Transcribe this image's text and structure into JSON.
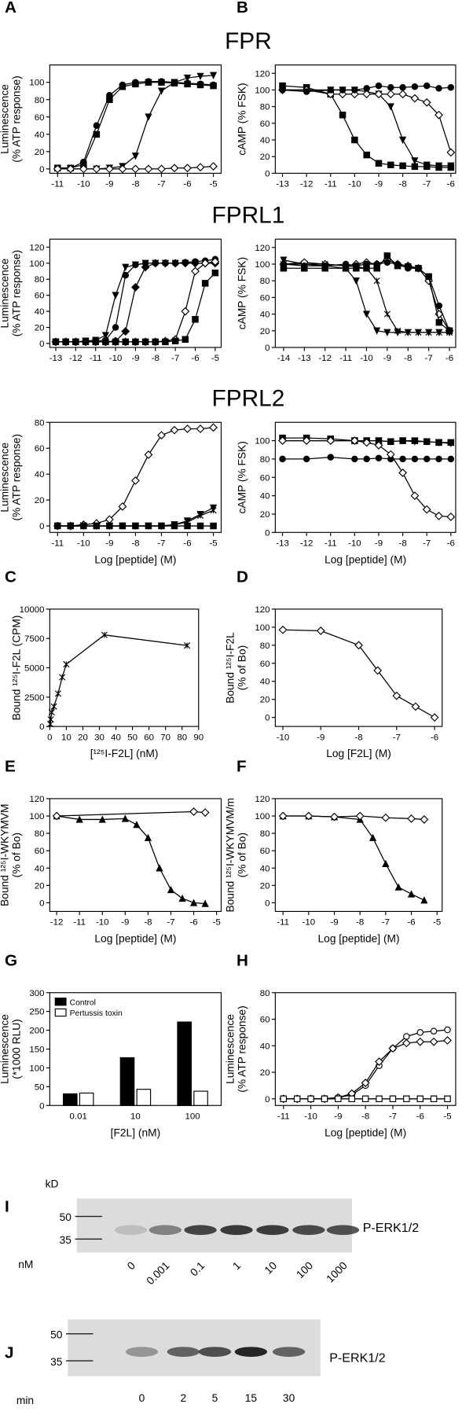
{
  "chart_data": [
    {
      "type": "line",
      "panel": "A",
      "title": "FPR",
      "ylabel": [
        "Luminescence",
        "(% ATP response)"
      ],
      "xlim": [
        -11.3,
        -4.7
      ],
      "xticks": [
        -11,
        -10,
        -9,
        -8,
        -7,
        -6,
        -5
      ],
      "ylim": [
        -5,
        120
      ],
      "yticks": [
        0,
        20,
        40,
        60,
        80,
        100
      ],
      "x": [
        -11,
        -10.5,
        -10,
        -9.5,
        -9,
        -8.5,
        -8,
        -7.5,
        -7,
        -6.5,
        -6,
        -5.5,
        -5
      ],
      "series": [
        {
          "marker": "square",
          "filled": true,
          "values": [
            1,
            1,
            5,
            40,
            80,
            95,
            98,
            100,
            100,
            99,
            98,
            97,
            96
          ]
        },
        {
          "marker": "circle",
          "filled": true,
          "values": [
            1,
            1,
            8,
            50,
            85,
            97,
            100,
            101,
            101,
            100,
            99,
            98,
            97
          ]
        },
        {
          "marker": "triangle",
          "filled": true,
          "values": [
            0,
            0,
            0,
            0,
            1,
            3,
            15,
            60,
            90,
            100,
            105,
            107,
            108
          ]
        },
        {
          "marker": "diamond",
          "filled": false,
          "values": [
            0,
            0,
            0,
            0,
            0,
            0,
            0,
            0,
            0,
            1,
            1,
            2,
            3
          ]
        }
      ]
    },
    {
      "type": "line",
      "panel": "B",
      "ylabel": [
        "cAMP (% FSK)"
      ],
      "xlim": [
        -13.3,
        -5.8
      ],
      "xticks": [
        -13,
        -12,
        -11,
        -10,
        -9,
        -8,
        -7,
        -6
      ],
      "ylim": [
        0,
        130
      ],
      "yticks": [
        0,
        20,
        40,
        60,
        80,
        100,
        120
      ],
      "x": [
        -13,
        -12,
        -11,
        -10.5,
        -10,
        -9.5,
        -9,
        -8.5,
        -8,
        -7.5,
        -7,
        -6.5,
        -6
      ],
      "series": [
        {
          "marker": "square",
          "filled": true,
          "values": [
            105,
            103,
            95,
            70,
            40,
            22,
            12,
            10,
            9,
            8,
            8,
            7,
            7
          ]
        },
        {
          "marker": "triangle",
          "filled": true,
          "values": [
            100,
            100,
            100,
            100,
            100,
            98,
            95,
            80,
            40,
            15,
            10,
            9,
            9
          ]
        },
        {
          "marker": "diamond",
          "filled": false,
          "values": [
            100,
            100,
            95,
            95,
            95,
            95,
            95,
            95,
            95,
            90,
            85,
            70,
            25
          ]
        },
        {
          "marker": "circle",
          "filled": true,
          "values": [
            100,
            98,
            100,
            100,
            100,
            102,
            105,
            103,
            103,
            104,
            105,
            102,
            103
          ]
        }
      ]
    },
    {
      "type": "line",
      "title": "FPRL1",
      "ylabel": [
        "Luminescence",
        "(% ATP response)"
      ],
      "xlim": [
        -13.3,
        -4.7
      ],
      "xticks": [
        -13,
        -12,
        -11,
        -10,
        -9,
        -8,
        -7,
        -6,
        -5
      ],
      "ylim": [
        -5,
        130
      ],
      "yticks": [
        0,
        20,
        40,
        60,
        80,
        100,
        120
      ],
      "x": [
        -13,
        -12.5,
        -12,
        -11.5,
        -11,
        -10.5,
        -10,
        -9.5,
        -9,
        -8.5,
        -8,
        -7.5,
        -7,
        -6.5,
        -6,
        -5.5,
        -5
      ],
      "series": [
        {
          "marker": "triangle",
          "filled": true,
          "values": [
            2,
            2,
            2,
            3,
            4,
            10,
            60,
            95,
            98,
            100,
            100,
            100,
            100,
            100,
            100,
            100,
            100
          ]
        },
        {
          "marker": "circle",
          "filled": true,
          "values": [
            2,
            2,
            2,
            2,
            3,
            4,
            20,
            85,
            98,
            100,
            100,
            100,
            100,
            101,
            102,
            103,
            105
          ]
        },
        {
          "marker": "diamond",
          "filled": true,
          "values": [
            2,
            2,
            2,
            2,
            2,
            2,
            3,
            15,
            70,
            95,
            100,
            100,
            100,
            100,
            100,
            100,
            100
          ]
        },
        {
          "marker": "diamond",
          "filled": false,
          "values": [
            2,
            2,
            2,
            2,
            2,
            2,
            2,
            2,
            2,
            2,
            2,
            3,
            5,
            40,
            90,
            100,
            102
          ]
        },
        {
          "marker": "square",
          "filled": true,
          "values": [
            2,
            2,
            2,
            2,
            2,
            2,
            2,
            2,
            2,
            2,
            2,
            2,
            3,
            5,
            30,
            75,
            88
          ]
        }
      ]
    },
    {
      "type": "line",
      "ylabel": [
        "cAMP (% FSK)"
      ],
      "xlim": [
        -14.4,
        -5.7
      ],
      "xticks": [
        -14,
        -13,
        -12,
        -11,
        -10,
        -9,
        -8,
        -7,
        -6
      ],
      "ylim": [
        0,
        130
      ],
      "yticks": [
        0,
        20,
        40,
        60,
        80,
        100,
        120
      ],
      "x": [
        -14,
        -13,
        -12,
        -11,
        -10.5,
        -10,
        -9.5,
        -9,
        -8.5,
        -8,
        -7.5,
        -7,
        -6.5,
        -6
      ],
      "series": [
        {
          "marker": "triangle",
          "filled": true,
          "values": [
            105,
            100,
            98,
            95,
            80,
            40,
            20,
            18,
            18,
            18,
            18,
            18,
            18,
            18
          ]
        },
        {
          "marker": "star",
          "filled": true,
          "values": [
            100,
            100,
            100,
            98,
            97,
            95,
            80,
            40,
            20,
            18,
            18,
            18,
            18,
            18
          ]
        },
        {
          "marker": "diamond",
          "filled": false,
          "values": [
            100,
            102,
            100,
            98,
            100,
            102,
            100,
            105,
            100,
            98,
            95,
            80,
            40,
            20
          ]
        },
        {
          "marker": "square",
          "filled": true,
          "values": [
            95,
            95,
            95,
            95,
            95,
            95,
            95,
            110,
            98,
            97,
            95,
            85,
            30,
            20
          ]
        },
        {
          "marker": "circle",
          "filled": true,
          "values": [
            100,
            98,
            98,
            100,
            98,
            100,
            100,
            102,
            100,
            95,
            95,
            85,
            50,
            20
          ]
        }
      ]
    },
    {
      "type": "line",
      "title": "FPRL2",
      "ylabel": [
        "Luminescence",
        "(% ATP response)"
      ],
      "xlabel": "Log [peptide] (M)",
      "xlim": [
        -11.3,
        -4.7
      ],
      "xticks": [
        -11,
        -10,
        -9,
        -8,
        -7,
        -6,
        -5
      ],
      "ylim": [
        -5,
        80
      ],
      "yticks": [
        0,
        20,
        40,
        60,
        80
      ],
      "x": [
        -11,
        -10.5,
        -10,
        -9.5,
        -9,
        -8.5,
        -8,
        -7.5,
        -7,
        -6.5,
        -6,
        -5.5,
        -5
      ],
      "series": [
        {
          "marker": "diamond",
          "filled": false,
          "values": [
            0,
            0,
            1,
            2,
            5,
            15,
            35,
            55,
            70,
            74,
            75,
            75,
            76
          ]
        },
        {
          "marker": "triangle",
          "filled": true,
          "values": [
            0,
            0,
            0,
            0,
            0,
            0,
            0,
            0,
            0,
            1,
            4,
            9,
            14
          ]
        },
        {
          "marker": "star",
          "filled": true,
          "values": [
            0,
            0,
            0,
            0,
            0,
            0,
            0,
            0,
            0,
            1,
            3,
            8,
            12
          ]
        },
        {
          "marker": "square",
          "filled": true,
          "values": [
            0,
            0,
            0,
            0,
            0,
            0,
            0,
            0,
            0,
            0,
            0,
            0,
            0
          ]
        }
      ]
    },
    {
      "type": "line",
      "ylabel": [
        "cAMP (% FSK)"
      ],
      "xlabel": "Log [peptide] (M)",
      "xlim": [
        -13.3,
        -5.8
      ],
      "xticks": [
        -13,
        -12,
        -11,
        -10,
        -9,
        -8,
        -7,
        -6
      ],
      "ylim": [
        0,
        120
      ],
      "yticks": [
        0,
        20,
        40,
        60,
        80,
        100
      ],
      "x": [
        -13,
        -12,
        -11,
        -10,
        -9.5,
        -9,
        -8.5,
        -8,
        -7.5,
        -7,
        -6.5,
        -6
      ],
      "series": [
        {
          "marker": "square",
          "filled": true,
          "values": [
            103,
            103,
            102,
            100,
            100,
            100,
            99,
            100,
            100,
            99,
            98,
            98
          ]
        },
        {
          "marker": "triangle",
          "filled": true,
          "values": [
            100,
            100,
            100,
            100,
            100,
            100,
            99,
            100,
            99,
            99,
            98,
            97
          ]
        },
        {
          "marker": "circle",
          "filled": true,
          "values": [
            80,
            80,
            82,
            80,
            80,
            81,
            80,
            80,
            80,
            80,
            80,
            80
          ]
        },
        {
          "marker": "diamond",
          "filled": false,
          "values": [
            100,
            100,
            100,
            100,
            98,
            95,
            85,
            65,
            40,
            25,
            18,
            17
          ]
        }
      ]
    },
    {
      "type": "line",
      "panel": "C",
      "ylabel": [
        "Bound ¹²⁵I-F2L (CPM)"
      ],
      "xlabel": "[¹²⁵I-F2L] (nM)",
      "xlim": [
        0,
        90
      ],
      "xticks": [
        0,
        10,
        20,
        30,
        40,
        50,
        60,
        70,
        80,
        90
      ],
      "ylim": [
        0,
        10000
      ],
      "yticks": [
        0,
        2500,
        5000,
        7500,
        10000
      ],
      "x": [
        0.3,
        0.6,
        1.2,
        2.5,
        5,
        7.5,
        10,
        33,
        83
      ],
      "series": [
        {
          "marker": "star",
          "filled": true,
          "values": [
            200,
            600,
            1200,
            1700,
            2800,
            4200,
            5300,
            7800,
            6900
          ]
        }
      ]
    },
    {
      "type": "line",
      "panel": "D",
      "ylabel": [
        "Bound ¹²⁵I-F2L",
        "(% of Bo)"
      ],
      "xlabel": "Log [F2L] (M)",
      "xlim": [
        -10.2,
        -5.8
      ],
      "xticks": [
        -10,
        -9,
        -8,
        -7,
        -6
      ],
      "ylim": [
        -10,
        120
      ],
      "yticks": [
        0,
        20,
        40,
        60,
        80,
        100,
        120
      ],
      "x": [
        -10,
        -9,
        -8,
        -7.5,
        -7,
        -6.5,
        -6
      ],
      "series": [
        {
          "marker": "diamond",
          "filled": false,
          "values": [
            97,
            96,
            80,
            52,
            24,
            12,
            0
          ]
        }
      ]
    },
    {
      "type": "line",
      "panel": "E",
      "ylabel": [
        "Bound ¹²⁵I-WKYMVM",
        "(% of Bo)"
      ],
      "xlabel": "Log [peptide] (M)",
      "xlim": [
        -12.3,
        -4.8
      ],
      "xticks": [
        -12,
        -11,
        -10,
        -9,
        -8,
        -7,
        -6,
        -5
      ],
      "ylim": [
        -10,
        120
      ],
      "yticks": [
        0,
        20,
        40,
        60,
        80,
        100,
        120
      ],
      "series": [
        {
          "marker": "triangle-up",
          "filled": true,
          "x": [
            -12,
            -11,
            -10,
            -9,
            -8.5,
            -8,
            -7.5,
            -7,
            -6.5,
            -6,
            -5.5
          ],
          "values": [
            100,
            96,
            96,
            97,
            90,
            75,
            40,
            15,
            5,
            0,
            -1
          ]
        },
        {
          "marker": "diamond",
          "filled": false,
          "x": [
            -12,
            -6,
            -5.5
          ],
          "values": [
            100,
            105,
            104
          ]
        }
      ]
    },
    {
      "type": "line",
      "panel": "F",
      "ylabel": [
        "Bound ¹²⁵I-WKYMVM/m",
        "(% of Bo)"
      ],
      "xlabel": "Log [peptide] (M)",
      "xlim": [
        -11.3,
        -4.8
      ],
      "xticks": [
        -11,
        -10,
        -9,
        -8,
        -7,
        -6,
        -5
      ],
      "ylim": [
        -10,
        120
      ],
      "yticks": [
        0,
        20,
        40,
        60,
        80,
        100,
        120
      ],
      "series": [
        {
          "marker": "triangle-up",
          "filled": true,
          "x": [
            -11,
            -10,
            -9,
            -8,
            -7.5,
            -7,
            -6.5,
            -6,
            -5.5
          ],
          "values": [
            100,
            100,
            99,
            96,
            75,
            45,
            18,
            10,
            3
          ]
        },
        {
          "marker": "diamond",
          "filled": false,
          "x": [
            -11,
            -10,
            -9,
            -8,
            -7,
            -6,
            -5.5
          ],
          "values": [
            100,
            100,
            99,
            100,
            98,
            97,
            96
          ]
        }
      ]
    },
    {
      "type": "bar",
      "panel": "G",
      "ylabel": [
        "Luminescence",
        "(*1000 RLU)"
      ],
      "xlabel": "[F2L] (nM)",
      "categories": [
        "0.01",
        "10",
        "100"
      ],
      "ylim": [
        0,
        300
      ],
      "yticks": [
        0,
        50,
        100,
        150,
        200,
        250,
        300
      ],
      "series": [
        {
          "name": "Control",
          "color": "#000000",
          "values": [
            31,
            127,
            222
          ]
        },
        {
          "name": "Pertussis toxin",
          "color": "#ffffff",
          "values": [
            33,
            43,
            38
          ]
        }
      ]
    },
    {
      "type": "line",
      "panel": "H",
      "ylabel": [
        "Luminescence",
        "(% ATP response)"
      ],
      "xlabel": "Log [peptide] (M)",
      "xlim": [
        -11.3,
        -4.7
      ],
      "xticks": [
        -11,
        -10,
        -9,
        -8,
        -7,
        -6,
        -5
      ],
      "ylim": [
        -5,
        80
      ],
      "yticks": [
        0,
        20,
        40,
        60,
        80
      ],
      "x": [
        -11,
        -10.5,
        -10,
        -9.5,
        -9,
        -8.5,
        -8,
        -7.5,
        -7,
        -6.5,
        -6,
        -5.5,
        -5
      ],
      "series": [
        {
          "marker": "circle",
          "filled": false,
          "values": [
            0,
            0,
            0,
            0,
            1,
            3,
            10,
            25,
            38,
            47,
            50,
            51,
            52
          ]
        },
        {
          "marker": "diamond",
          "filled": false,
          "values": [
            0,
            0,
            0,
            0,
            1,
            4,
            12,
            28,
            38,
            42,
            43,
            43,
            44
          ]
        },
        {
          "marker": "square",
          "filled": false,
          "values": [
            0,
            0,
            0,
            0,
            0,
            0,
            0,
            0,
            0,
            0,
            0,
            0,
            0
          ]
        }
      ]
    }
  ],
  "blots": [
    {
      "panel": "I",
      "unit": "kD",
      "markers": [
        "50",
        "35"
      ],
      "axis_label": "nM",
      "lanes": [
        "0",
        "0.001",
        "0.1",
        "1",
        "10",
        "100",
        "1000"
      ],
      "target": "P-ERK1/2"
    },
    {
      "panel": "J",
      "markers": [
        "50",
        "35"
      ],
      "axis_label": "min",
      "lanes": [
        "0",
        "2",
        "5",
        "15",
        "30"
      ],
      "target": "P-ERK1/2"
    }
  ]
}
